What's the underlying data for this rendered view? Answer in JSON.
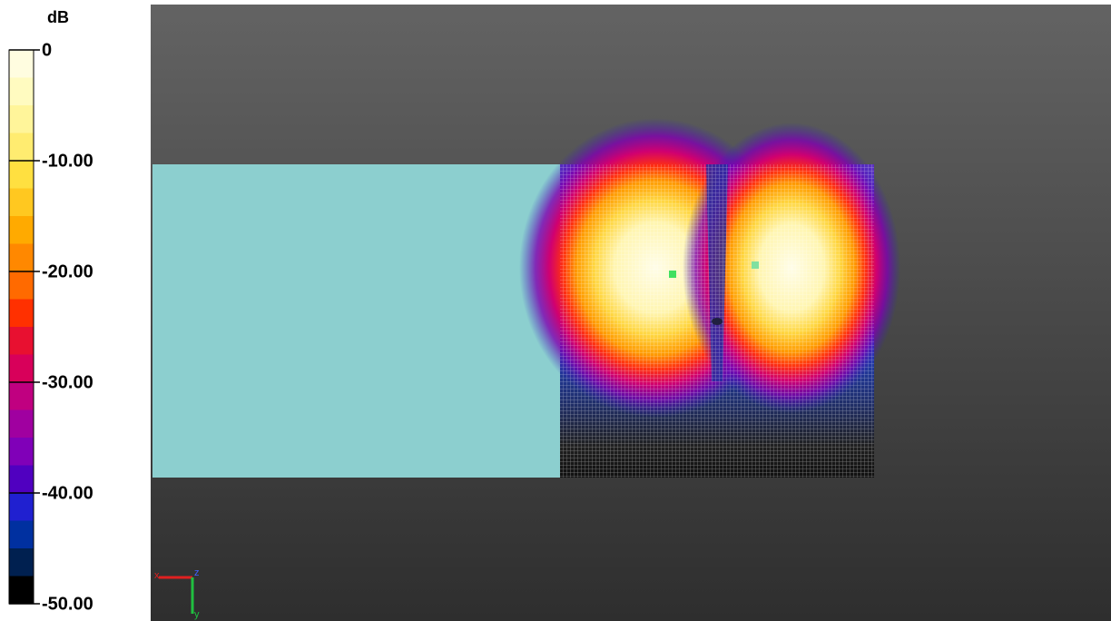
{
  "colorbar": {
    "unit": "dB",
    "ticks": [
      {
        "value": 0,
        "label": "0"
      },
      {
        "value": -10,
        "label": "-10.00"
      },
      {
        "value": -20,
        "label": "-20.00"
      },
      {
        "value": -30,
        "label": "-30.00"
      },
      {
        "value": -40,
        "label": "-40.00"
      },
      {
        "value": -50,
        "label": "-50.00"
      }
    ],
    "range": [
      -50,
      0
    ]
  },
  "triad": {
    "x": "x",
    "y": "y",
    "z": "z"
  }
}
